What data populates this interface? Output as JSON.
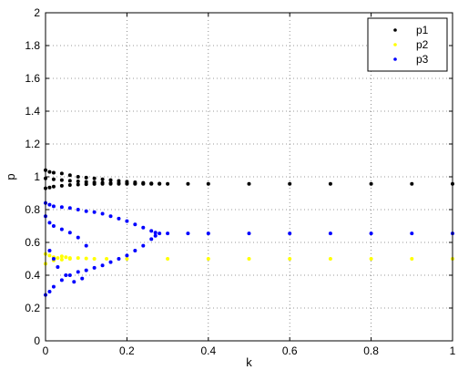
{
  "chart_data": {
    "type": "scatter",
    "title": "",
    "xlabel": "k",
    "ylabel": "p",
    "xlim": [
      0,
      1
    ],
    "ylim": [
      0,
      2
    ],
    "x_ticks": [
      0,
      0.2,
      0.4,
      0.6,
      0.8,
      1
    ],
    "x_tick_labels": [
      "0",
      "0.2",
      "0.4",
      "0.6",
      "0.8",
      "1"
    ],
    "y_ticks": [
      0,
      0.2,
      0.4,
      0.6,
      0.8,
      1,
      1.2,
      1.4,
      1.6,
      1.8,
      2
    ],
    "y_tick_labels": [
      "0",
      "0.2",
      "0.4",
      "0.6",
      "0.8",
      "1",
      "1.2",
      "1.4",
      "1.6",
      "1.8",
      "2"
    ],
    "grid": true,
    "legend_position": "top-right",
    "series": [
      {
        "name": "p1",
        "color": "#000000",
        "x": [
          0,
          0.01,
          0.02,
          0.04,
          0.06,
          0.08,
          0.1,
          0.12,
          0.14,
          0.16,
          0.18,
          0.2,
          0.22,
          0.24,
          0.26,
          0.28,
          0.3,
          0.35,
          0.4,
          0.5,
          0.6,
          0.7,
          0.8,
          0.9,
          1,
          0,
          0.01,
          0.02,
          0.04,
          0.06,
          0.08,
          0.1,
          0.12,
          0.14,
          0.16,
          0.18,
          0.2,
          0.22,
          0.24,
          0.26,
          0.28,
          0,
          0.02,
          0.04,
          0.06,
          0.08,
          0.1,
          0.12,
          0.14,
          0.16,
          0.18,
          0.2,
          0.22,
          0.24,
          0.26
        ],
        "y": [
          1.04,
          1.03,
          1.025,
          1.02,
          1.01,
          1.0,
          0.995,
          0.99,
          0.985,
          0.98,
          0.975,
          0.97,
          0.967,
          0.963,
          0.96,
          0.958,
          0.957,
          0.957,
          0.957,
          0.957,
          0.957,
          0.957,
          0.957,
          0.957,
          0.957,
          0.93,
          0.935,
          0.94,
          0.945,
          0.95,
          0.953,
          0.955,
          0.956,
          0.957,
          0.957,
          0.957,
          0.957,
          0.957,
          0.957,
          0.957,
          0.957,
          0.99,
          0.985,
          0.98,
          0.976,
          0.972,
          0.969,
          0.966,
          0.964,
          0.962,
          0.961,
          0.96,
          0.959,
          0.958,
          0.958
        ]
      },
      {
        "name": "p2",
        "color": "#ffff00",
        "x": [
          0,
          0.01,
          0.02,
          0.03,
          0.04,
          0.05,
          0.06,
          0.08,
          0.1,
          0.12,
          0.15,
          0.2,
          0.3,
          0.4,
          0.5,
          0.6,
          0.7,
          0.8,
          0.9,
          1,
          0,
          0.02,
          0.04,
          0.06
        ],
        "y": [
          0.53,
          0.52,
          0.51,
          0.505,
          0.515,
          0.51,
          0.505,
          0.505,
          0.502,
          0.5,
          0.5,
          0.5,
          0.5,
          0.5,
          0.5,
          0.5,
          0.5,
          0.5,
          0.5,
          0.5,
          0.47,
          0.49,
          0.495,
          0.5
        ]
      },
      {
        "name": "p3",
        "color": "#0000ff",
        "x": [
          0,
          0.01,
          0.02,
          0.04,
          0.06,
          0.08,
          0.1,
          0.12,
          0.14,
          0.16,
          0.18,
          0.2,
          0.22,
          0.24,
          0.26,
          0.27,
          0.28,
          0.3,
          0.35,
          0.4,
          0.5,
          0.6,
          0.7,
          0.8,
          0.9,
          1,
          0,
          0.01,
          0.02,
          0.04,
          0.06,
          0.08,
          0.1,
          0.12,
          0.14,
          0.16,
          0.18,
          0.2,
          0.22,
          0.24,
          0.26,
          0.27,
          0,
          0.01,
          0.02,
          0.04,
          0.06,
          0.08,
          0.1,
          0.01,
          0.02,
          0.03,
          0.05,
          0.07,
          0.09
        ],
        "y": [
          0.84,
          0.83,
          0.82,
          0.815,
          0.81,
          0.8,
          0.79,
          0.785,
          0.775,
          0.76,
          0.745,
          0.73,
          0.71,
          0.69,
          0.67,
          0.66,
          0.655,
          0.655,
          0.655,
          0.655,
          0.655,
          0.655,
          0.655,
          0.655,
          0.655,
          0.655,
          0.28,
          0.3,
          0.33,
          0.37,
          0.4,
          0.42,
          0.43,
          0.445,
          0.46,
          0.48,
          0.5,
          0.52,
          0.55,
          0.58,
          0.62,
          0.64,
          0.76,
          0.72,
          0.7,
          0.68,
          0.66,
          0.63,
          0.58,
          0.55,
          0.5,
          0.45,
          0.4,
          0.36,
          0.38
        ]
      }
    ]
  }
}
